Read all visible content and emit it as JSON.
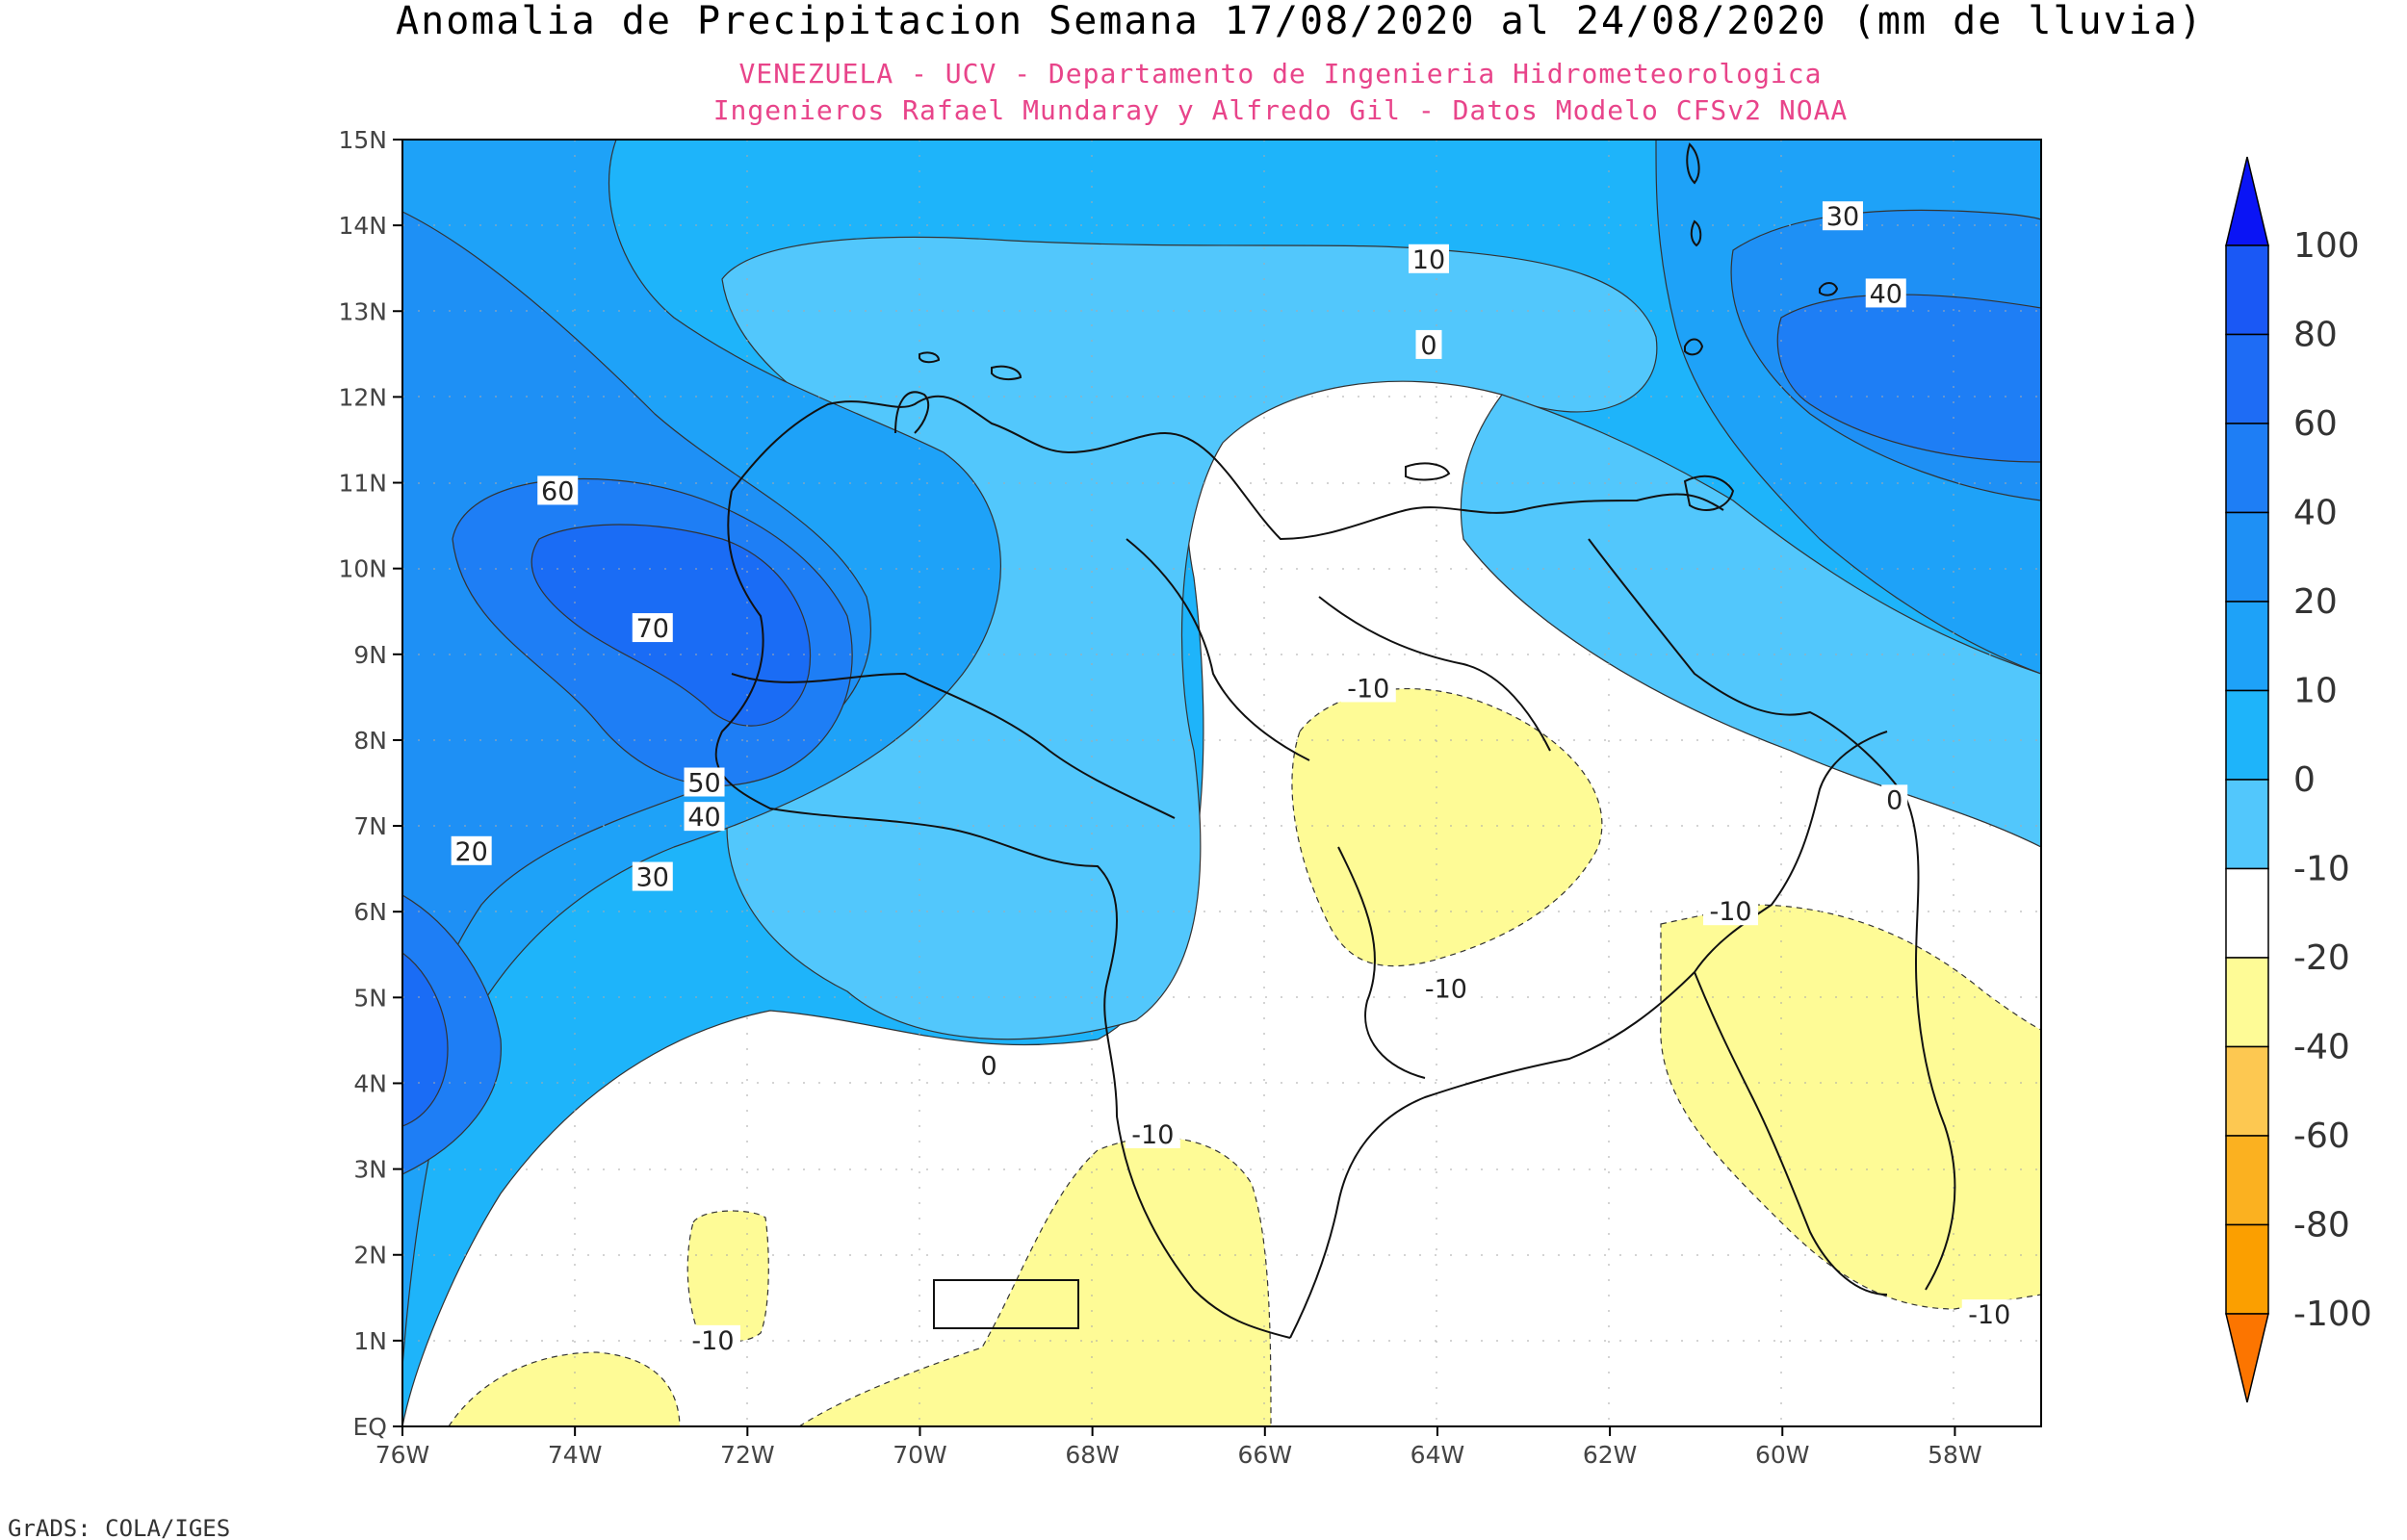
{
  "title": "Anomalia de Precipitacion Semana 17/08/2020 al 24/08/2020 (mm de lluvia)",
  "subtitle_line1": "VENEZUELA - UCV - Departamento de Ingenieria Hidrometeorologica",
  "subtitle_line2": "Ingenieros Rafael Mundaray y Alfredo Gil - Datos Modelo CFSv2 NOAA",
  "credit": "GrADS: COLA/IGES",
  "map": {
    "lon_range": [
      -76,
      -57
    ],
    "lat_range": [
      0,
      15
    ],
    "lat_labels": [
      "EQ",
      "1N",
      "2N",
      "3N",
      "4N",
      "5N",
      "6N",
      "7N",
      "8N",
      "9N",
      "10N",
      "11N",
      "12N",
      "13N",
      "14N",
      "15N"
    ],
    "lon_labels": [
      {
        "lon": -76,
        "text": "76W"
      },
      {
        "lon": -74,
        "text": "74W"
      },
      {
        "lon": -72,
        "text": "72W"
      },
      {
        "lon": -70,
        "text": "70W"
      },
      {
        "lon": -68,
        "text": "68W"
      },
      {
        "lon": -66,
        "text": "66W"
      },
      {
        "lon": -64,
        "text": "64W"
      },
      {
        "lon": -62,
        "text": "62W"
      },
      {
        "lon": -60,
        "text": "60W"
      },
      {
        "lon": -58,
        "text": "58W"
      }
    ],
    "contour_labels": [
      {
        "lon": -74.2,
        "lat": 10.9,
        "text": "60"
      },
      {
        "lon": -73.1,
        "lat": 9.3,
        "text": "70"
      },
      {
        "lon": -72.5,
        "lat": 7.5,
        "text": "50"
      },
      {
        "lon": -72.5,
        "lat": 7.1,
        "text": "40"
      },
      {
        "lon": -73.1,
        "lat": 6.4,
        "text": "30"
      },
      {
        "lon": -75.2,
        "lat": 6.7,
        "text": "20"
      },
      {
        "lon": -64.1,
        "lat": 13.6,
        "text": "10"
      },
      {
        "lon": -64.1,
        "lat": 12.6,
        "text": "0"
      },
      {
        "lon": -69.2,
        "lat": 4.2,
        "text": "0"
      },
      {
        "lon": -59.3,
        "lat": 14.1,
        "text": "30"
      },
      {
        "lon": -58.8,
        "lat": 13.2,
        "text": "40"
      },
      {
        "lon": -58.7,
        "lat": 7.3,
        "text": "0"
      },
      {
        "lon": -64.8,
        "lat": 8.6,
        "text": "-10"
      },
      {
        "lon": -63.9,
        "lat": 5.1,
        "text": "-10"
      },
      {
        "lon": -60.6,
        "lat": 6.0,
        "text": "-10"
      },
      {
        "lon": -67.3,
        "lat": 3.4,
        "text": "-10"
      },
      {
        "lon": -72.4,
        "lat": 1.0,
        "text": "-10"
      },
      {
        "lon": -57.6,
        "lat": 1.3,
        "text": "-10"
      }
    ]
  },
  "colorbar": {
    "levels": [
      {
        "label": "100",
        "color": "#1a58f5"
      },
      {
        "label": "80",
        "color": "#1e6cf5"
      },
      {
        "label": "60",
        "color": "#1e7ef5"
      },
      {
        "label": "40",
        "color": "#1e90f5"
      },
      {
        "label": "20",
        "color": "#1ea2f8"
      },
      {
        "label": "10",
        "color": "#1eb4fa"
      },
      {
        "label": "0",
        "color": "#52c7fc"
      },
      {
        "label": "-10",
        "color": "#ffffff"
      },
      {
        "label": "-20",
        "color": "#fefb96"
      },
      {
        "label": "-40",
        "color": "#fdc851"
      },
      {
        "label": "-60",
        "color": "#fbb120"
      },
      {
        "label": "-80",
        "color": "#fb9f00"
      },
      {
        "label": "-100",
        "color": "#fc8c00"
      }
    ],
    "top_arrow_color": "#0a14f5",
    "bottom_arrow_color": "#fc7500"
  }
}
